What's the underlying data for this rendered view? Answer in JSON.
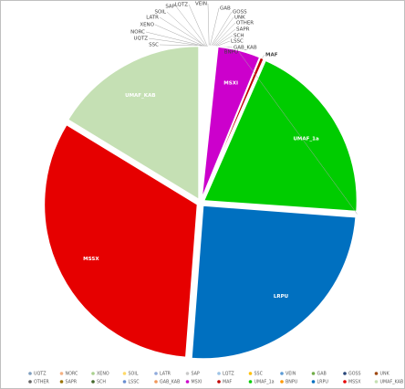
{
  "chart_data": {
    "type": "pie",
    "categories": [
      "UQTZ",
      "NORC",
      "XENO",
      "SOIL",
      "LATR",
      "SAP",
      "LQTZ",
      "SSC",
      "VEIN",
      "GAB",
      "GOSS",
      "UNK",
      "OTHER",
      "SAPR",
      "SCH",
      "LSSC",
      "GAB_KAB",
      "MSXI",
      "MAF",
      "UMAF_1a",
      "BNPU",
      "LRPU",
      "MSSX",
      "UMAF_KAB"
    ],
    "values": [
      0.1,
      0.1,
      0.1,
      0.1,
      0.1,
      0.1,
      0.1,
      0.1,
      0.1,
      0.1,
      0.1,
      0.1,
      0.1,
      0.1,
      0.1,
      0.1,
      0.1,
      4.5,
      0.4,
      19.5,
      0.1,
      25,
      32.5,
      16.3
    ],
    "colors": [
      "#7f9fbf",
      "#f4b183",
      "#a9d18e",
      "#ffd966",
      "#8faadc",
      "#c9c9c9",
      "#9dc3e6",
      "#ffc000",
      "#5b9bd5",
      "#70ad47",
      "#264478",
      "#9e480e",
      "#636363",
      "#997300",
      "#43682b",
      "#698ed0",
      "#f1975a",
      "#cc00cc",
      "#c00000",
      "#00cc00",
      "#ff9900",
      "#0070c0",
      "#e60000",
      "#c5e0b4"
    ]
  }
}
